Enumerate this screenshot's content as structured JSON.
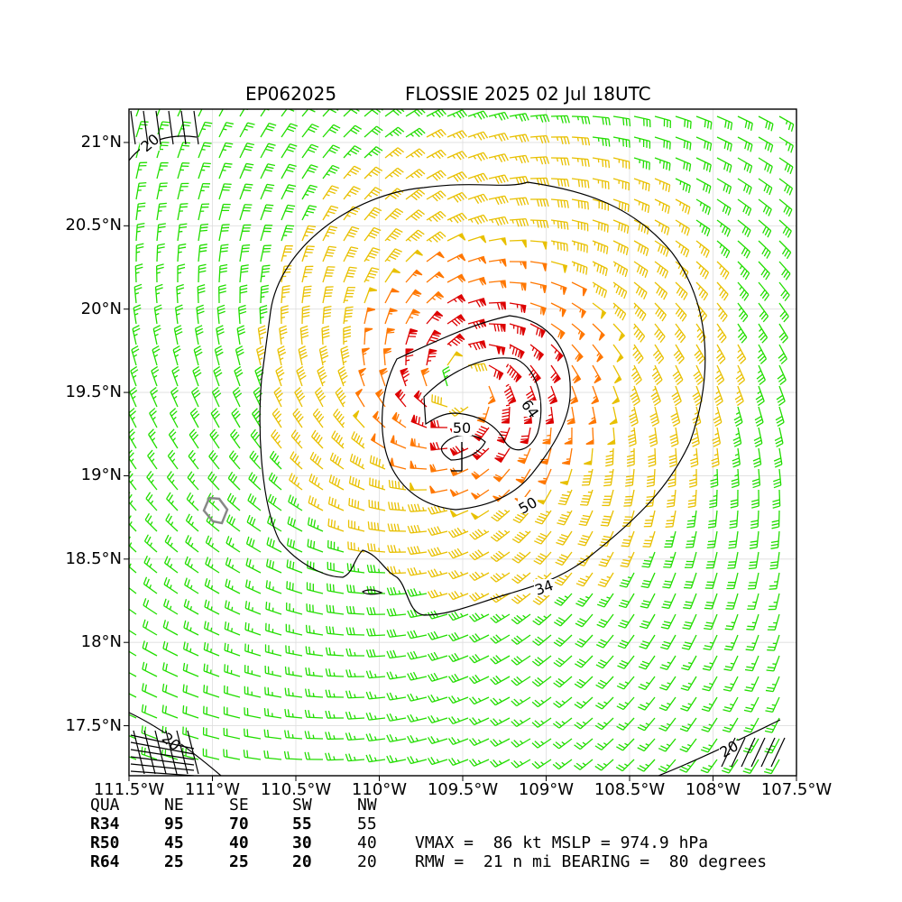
{
  "title": {
    "storm_id": "EP062025",
    "storm_line": "FLOSSIE 2025 02 Jul 18UTC"
  },
  "map": {
    "lat_labels": [
      "21°N",
      "20.5°N",
      "20°N",
      "19.5°N",
      "19°N",
      "18.5°N",
      "18°N",
      "17.5°N"
    ],
    "lon_labels": [
      "111.5°W",
      "111°W",
      "110.5°W",
      "110°W",
      "109.5°W",
      "109°W",
      "108.5°W",
      "108°W",
      "107.5°W"
    ],
    "lat_values": [
      21,
      20.5,
      20,
      19.5,
      19,
      18.5,
      18,
      17.5
    ],
    "lon_values": [
      -111.5,
      -111,
      -110.5,
      -110,
      -109.5,
      -109,
      -108.5,
      -108,
      -107.5
    ],
    "lat_range": [
      17.2,
      21.2
    ],
    "lon_range": [
      -111.5,
      -107.5
    ],
    "storm_center": {
      "lat": 19.1,
      "lon": -109.5
    },
    "contour_labels": [
      "20",
      "64",
      "50",
      "50",
      "34",
      "20",
      "20"
    ],
    "wind_colors": {
      "below_34": "#22dd00",
      "r34_50": "#e8c000",
      "r50_64": "#ff7700",
      "above_64": "#dd0000"
    }
  },
  "wind_radii": {
    "header": [
      "QUA",
      "NE",
      "SE",
      "SW",
      "NW"
    ],
    "rows": [
      [
        "R34",
        "95",
        "70",
        "55",
        "55"
      ],
      [
        "R50",
        "45",
        "40",
        "30",
        "40"
      ],
      [
        "R64",
        "25",
        "25",
        "20",
        "20"
      ]
    ]
  },
  "summary": {
    "line1": "VMAX =  86 kt MSLP = 974.9 hPa",
    "line2": "RMW =  21 n mi BEARING =  80 degrees"
  }
}
